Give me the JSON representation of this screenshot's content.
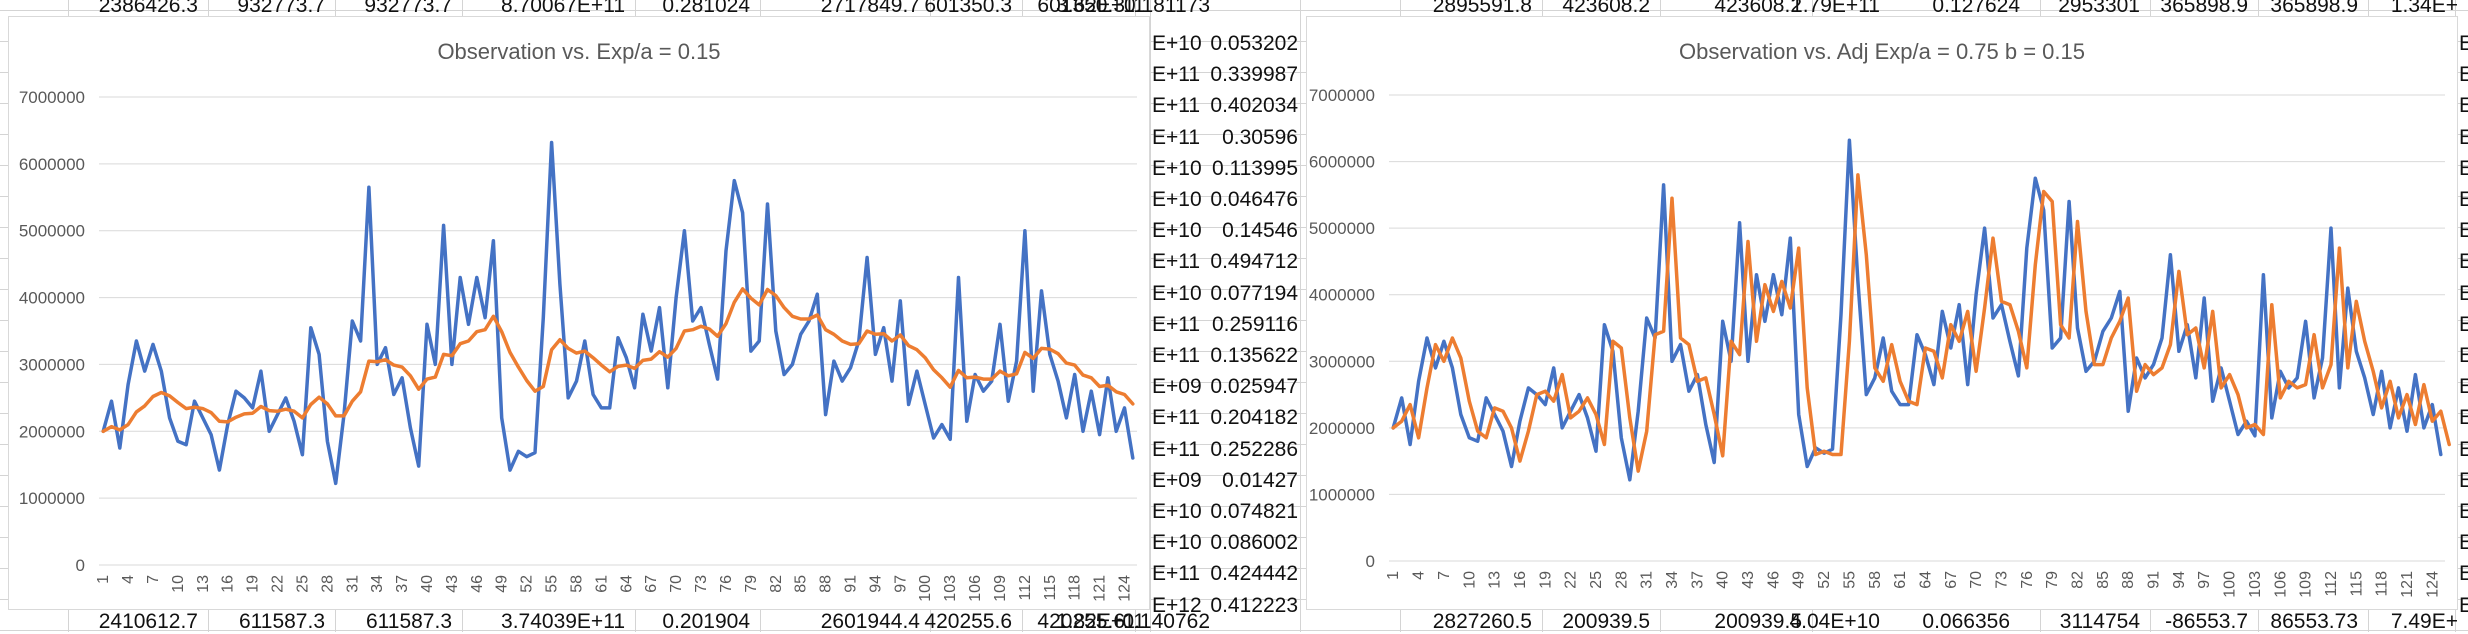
{
  "sheet": {
    "top_row_left": [
      "2386426.3",
      "932773.7",
      "932773.7",
      "8.70067E+11",
      "0.281024"
    ],
    "top_row_mid": [
      "2717849.7",
      "601350.3",
      "601350.3",
      "3.62E+11",
      "0.181173"
    ],
    "top_row_right": [
      "2895591.8",
      "423608.2",
      "423608.2",
      "1.79E+11",
      "0.127624"
    ],
    "top_row_far": [
      "2953301",
      "365898.9",
      "365898.9",
      "1.34E+"
    ],
    "bottom_row_left": [
      "2410612.7",
      "611587.3",
      "611587.3",
      "3.74039E+11",
      "0.201904"
    ],
    "bottom_row_mid": [
      "2601944.4",
      "420255.6",
      "420255.6",
      "1.82E+11",
      "0.140762"
    ],
    "bottom_row_right": [
      "2827260.5",
      "200939.5",
      "200939.5",
      "4.04E+10",
      "0.066356"
    ],
    "bottom_row_far": [
      "3114754",
      "-86553.7",
      "86553.73",
      "7.49E+"
    ],
    "middle_column": [
      {
        "exp": "E+10",
        "val": "0.053202"
      },
      {
        "exp": "E+11",
        "val": "0.339987"
      },
      {
        "exp": "E+11",
        "val": "0.402034"
      },
      {
        "exp": "E+11",
        "val": "0.30596"
      },
      {
        "exp": "E+10",
        "val": "0.113995"
      },
      {
        "exp": "E+10",
        "val": "0.046476"
      },
      {
        "exp": "E+10",
        "val": "0.14546"
      },
      {
        "exp": "E+11",
        "val": "0.494712"
      },
      {
        "exp": "E+10",
        "val": "0.077194"
      },
      {
        "exp": "E+11",
        "val": "0.259116"
      },
      {
        "exp": "E+11",
        "val": "0.135622"
      },
      {
        "exp": "E+09",
        "val": "0.025947"
      },
      {
        "exp": "E+11",
        "val": "0.204182"
      },
      {
        "exp": "E+11",
        "val": "0.252286"
      },
      {
        "exp": "E+09",
        "val": "0.01427"
      },
      {
        "exp": "E+10",
        "val": "0.074821"
      },
      {
        "exp": "E+10",
        "val": "0.086002"
      },
      {
        "exp": "E+11",
        "val": "0.424442"
      },
      {
        "exp": "E+12",
        "val": "0.412223"
      }
    ],
    "far_right_column": [
      "E+",
      "E+",
      "E+",
      "E+",
      "E+",
      "E+",
      "E+",
      "E+",
      "E+",
      "E+",
      "E+",
      "E+",
      "E+",
      "E+",
      "E+",
      "E+",
      "E+",
      "E+",
      "E+"
    ]
  },
  "chart_data": [
    {
      "type": "line",
      "title": "Observation vs. Exp/a = 0.15",
      "xlabel": "",
      "ylabel": "",
      "ylim": [
        0,
        7000000
      ],
      "yticks": [
        0,
        1000000,
        2000000,
        3000000,
        4000000,
        5000000,
        6000000,
        7000000
      ],
      "ytick_labels": [
        "0",
        "1000000",
        "2000000",
        "3000000",
        "4000000",
        "5000000",
        "6000000",
        "7000000"
      ],
      "x_count": 125,
      "x_tick_labels": [
        "1",
        "4",
        "7",
        "10",
        "13",
        "16",
        "19",
        "22",
        "25",
        "28",
        "31",
        "34",
        "37",
        "40",
        "43",
        "46",
        "49",
        "52",
        "55",
        "58",
        "61",
        "64",
        "67",
        "70",
        "73",
        "76",
        "79",
        "82",
        "85",
        "88",
        "91",
        "94",
        "97",
        "100",
        "103",
        "106",
        "109",
        "112",
        "115",
        "118",
        "121",
        "124"
      ],
      "grid": "horizontal",
      "legend": "none",
      "series": [
        {
          "color": "#4472C4",
          "values": [
            2000000,
            2450000,
            1750000,
            2700000,
            3350000,
            2900000,
            3300000,
            2900000,
            2200000,
            1850000,
            1800000,
            2450000,
            2200000,
            1950000,
            1420000,
            2100000,
            2600000,
            2500000,
            2350000,
            2900000,
            2000000,
            2250000,
            2500000,
            2150000,
            1650000,
            3550000,
            3150000,
            1850000,
            1220000,
            2250000,
            3650000,
            3350000,
            5650000,
            3000000,
            3250000,
            2550000,
            2800000,
            2050000,
            1480000,
            3600000,
            3000000,
            5080000,
            3000000,
            4300000,
            3600000,
            4300000,
            3700000,
            4850000,
            2200000,
            1420000,
            1700000,
            1620000,
            1680000,
            3700000,
            6320000,
            4200000,
            2500000,
            2750000,
            3350000,
            2550000,
            2350000,
            2350000,
            3400000,
            3100000,
            2650000,
            3750000,
            3200000,
            3850000,
            2650000,
            4000000,
            5000000,
            3650000,
            3850000,
            3300000,
            2780000,
            4700000,
            5750000,
            5270000,
            3200000,
            3350000,
            5400000,
            3500000,
            2850000,
            3000000,
            3450000,
            3650000,
            4050000,
            2250000,
            3050000,
            2750000,
            2950000,
            3350000,
            4600000,
            3150000,
            3550000,
            2750000,
            3950000,
            2400000,
            2900000,
            2400000,
            1900000,
            2100000,
            1880000,
            4300000,
            2150000,
            2850000,
            2600000,
            2750000,
            3600000,
            2450000,
            3050000,
            5000000,
            2600000,
            4100000,
            3150000,
            2750000,
            2200000,
            2850000,
            2000000,
            2600000,
            1950000,
            2800000,
            2000000,
            2350000,
            1600000
          ]
        },
        {
          "color": "#ED7D31",
          "values": [
            2000000,
            2070000,
            2020000,
            2100000,
            2290000,
            2380000,
            2520000,
            2580000,
            2530000,
            2430000,
            2340000,
            2360000,
            2340000,
            2280000,
            2150000,
            2140000,
            2210000,
            2260000,
            2270000,
            2370000,
            2310000,
            2300000,
            2330000,
            2300000,
            2200000,
            2400000,
            2510000,
            2410000,
            2230000,
            2230000,
            2450000,
            2590000,
            3050000,
            3040000,
            3070000,
            2990000,
            2960000,
            2830000,
            2630000,
            2780000,
            2810000,
            3150000,
            3130000,
            3310000,
            3350000,
            3490000,
            3520000,
            3720000,
            3490000,
            3180000,
            2960000,
            2760000,
            2600000,
            2670000,
            3220000,
            3370000,
            3240000,
            3170000,
            3200000,
            3100000,
            2990000,
            2890000,
            2970000,
            2990000,
            2940000,
            3060000,
            3080000,
            3190000,
            3110000,
            3240000,
            3500000,
            3520000,
            3570000,
            3530000,
            3420000,
            3610000,
            3930000,
            4130000,
            3990000,
            3890000,
            4120000,
            4030000,
            3850000,
            3720000,
            3680000,
            3680000,
            3740000,
            3520000,
            3450000,
            3350000,
            3300000,
            3310000,
            3500000,
            3450000,
            3460000,
            3350000,
            3440000,
            3280000,
            3220000,
            3100000,
            2920000,
            2800000,
            2660000,
            2910000,
            2800000,
            2810000,
            2780000,
            2780000,
            2900000,
            2830000,
            2860000,
            3180000,
            3090000,
            3240000,
            3230000,
            3160000,
            3020000,
            2990000,
            2840000,
            2800000,
            2670000,
            2690000,
            2590000,
            2550000,
            2410000
          ]
        }
      ]
    },
    {
      "type": "line",
      "title": "Observation vs. Adj Exp/a = 0.75 b = 0.15",
      "xlabel": "",
      "ylabel": "",
      "ylim": [
        0,
        7000000
      ],
      "yticks": [
        0,
        1000000,
        2000000,
        3000000,
        4000000,
        5000000,
        6000000,
        7000000
      ],
      "ytick_labels": [
        "0",
        "1000000",
        "2000000",
        "3000000",
        "4000000",
        "5000000",
        "6000000",
        "7000000"
      ],
      "x_count": 125,
      "x_tick_labels": [
        "1",
        "4",
        "7",
        "10",
        "13",
        "16",
        "19",
        "22",
        "25",
        "28",
        "31",
        "34",
        "37",
        "40",
        "43",
        "46",
        "49",
        "52",
        "55",
        "58",
        "61",
        "64",
        "67",
        "70",
        "73",
        "76",
        "79",
        "82",
        "85",
        "88",
        "91",
        "94",
        "97",
        "100",
        "103",
        "106",
        "109",
        "112",
        "115",
        "118",
        "121",
        "124"
      ],
      "grid": "horizontal",
      "legend": "none",
      "series": [
        {
          "color": "#4472C4",
          "values": [
            2000000,
            2450000,
            1750000,
            2700000,
            3350000,
            2900000,
            3300000,
            2900000,
            2200000,
            1850000,
            1800000,
            2450000,
            2200000,
            1950000,
            1420000,
            2100000,
            2600000,
            2500000,
            2350000,
            2900000,
            2000000,
            2250000,
            2500000,
            2150000,
            1650000,
            3550000,
            3150000,
            1850000,
            1220000,
            2250000,
            3650000,
            3350000,
            5650000,
            3000000,
            3250000,
            2550000,
            2800000,
            2050000,
            1480000,
            3600000,
            3000000,
            5080000,
            3000000,
            4300000,
            3600000,
            4300000,
            3700000,
            4850000,
            2200000,
            1420000,
            1700000,
            1620000,
            1680000,
            3700000,
            6320000,
            4200000,
            2500000,
            2750000,
            3350000,
            2550000,
            2350000,
            2350000,
            3400000,
            3100000,
            2650000,
            3750000,
            3200000,
            3850000,
            2650000,
            4000000,
            5000000,
            3650000,
            3850000,
            3300000,
            2780000,
            4700000,
            5750000,
            5270000,
            3200000,
            3350000,
            5400000,
            3500000,
            2850000,
            3000000,
            3450000,
            3650000,
            4050000,
            2250000,
            3050000,
            2750000,
            2950000,
            3350000,
            4600000,
            3150000,
            3550000,
            2750000,
            3950000,
            2400000,
            2900000,
            2400000,
            1900000,
            2100000,
            1880000,
            4300000,
            2150000,
            2850000,
            2600000,
            2750000,
            3600000,
            2450000,
            3050000,
            5000000,
            2600000,
            4100000,
            3150000,
            2750000,
            2200000,
            2850000,
            2000000,
            2600000,
            1950000,
            2800000,
            2000000,
            2350000,
            1600000
          ]
        },
        {
          "color": "#ED7D31",
          "values": [
            2000000,
            2100000,
            2350000,
            1850000,
            2600000,
            3250000,
            3000000,
            3350000,
            3050000,
            2400000,
            1950000,
            1850000,
            2300000,
            2250000,
            2000000,
            1500000,
            1950000,
            2500000,
            2550000,
            2400000,
            2800000,
            2150000,
            2250000,
            2450000,
            2200000,
            1750000,
            3300000,
            3200000,
            2150000,
            1350000,
            1950000,
            3400000,
            3450000,
            5450000,
            3350000,
            3250000,
            2700000,
            2750000,
            2200000,
            1580000,
            3300000,
            3100000,
            4800000,
            3300000,
            4150000,
            3750000,
            4200000,
            3800000,
            4700000,
            2600000,
            1600000,
            1650000,
            1600000,
            1600000,
            3300000,
            5800000,
            4600000,
            2900000,
            2700000,
            3250000,
            2700000,
            2400000,
            2350000,
            3200000,
            3150000,
            2750000,
            3550000,
            3300000,
            3750000,
            2850000,
            3800000,
            4850000,
            3900000,
            3850000,
            3450000,
            2900000,
            4450000,
            5550000,
            5400000,
            3550000,
            3350000,
            5100000,
            3750000,
            2950000,
            2950000,
            3350000,
            3600000,
            3950000,
            2550000,
            2950000,
            2800000,
            2900000,
            3250000,
            4350000,
            3400000,
            3500000,
            2900000,
            3750000,
            2600000,
            2800000,
            2500000,
            2000000,
            2050000,
            1900000,
            3850000,
            2450000,
            2700000,
            2600000,
            2650000,
            3400000,
            2600000,
            2950000,
            4700000,
            2900000,
            3900000,
            3300000,
            2850000,
            2300000,
            2700000,
            2150000,
            2500000,
            2050000,
            2650000,
            2100000,
            2250000,
            1750000
          ]
        }
      ]
    }
  ]
}
